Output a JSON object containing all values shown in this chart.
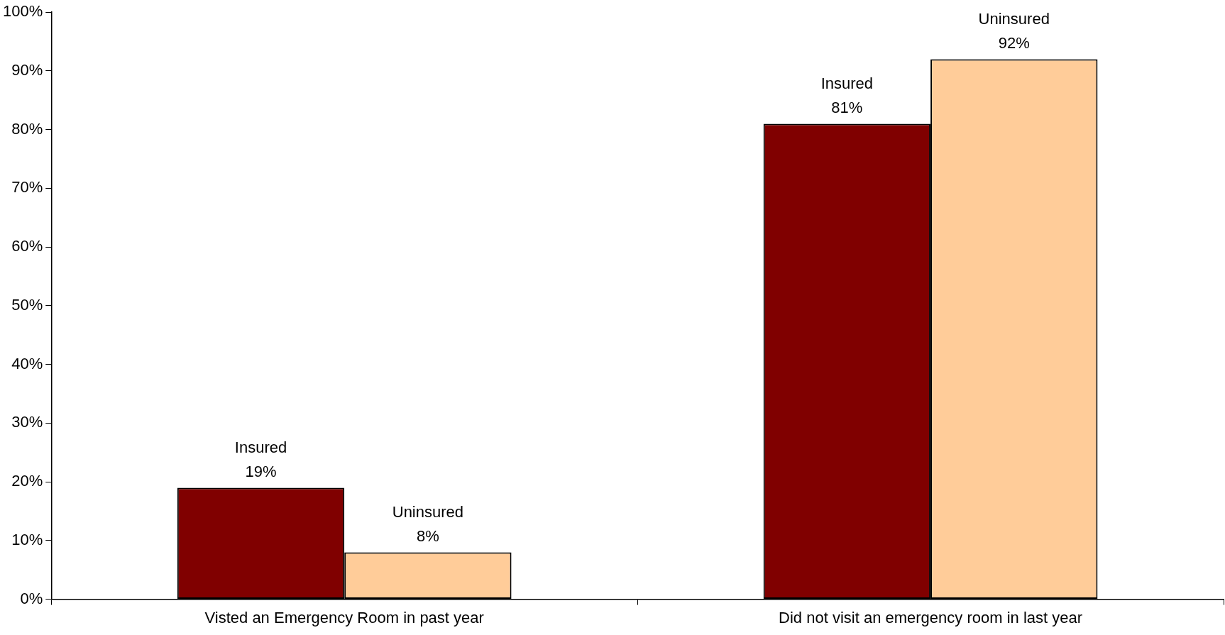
{
  "chart_data": {
    "type": "bar",
    "categories": [
      "Visted an Emergency Room in past year",
      "Did not visit an emergency room in last year"
    ],
    "series": [
      {
        "name": "Insured",
        "color": "#800000",
        "values": [
          19,
          81
        ],
        "value_labels": [
          "19%",
          "81%"
        ]
      },
      {
        "name": "Uninsured",
        "color": "#ffcc99",
        "values": [
          8,
          92
        ],
        "value_labels": [
          "8%",
          "92%"
        ]
      }
    ],
    "ylim": [
      0,
      100
    ],
    "yticks": [
      {
        "value": 0,
        "label": "0%"
      },
      {
        "value": 10,
        "label": "10%"
      },
      {
        "value": 20,
        "label": "20%"
      },
      {
        "value": 30,
        "label": "30%"
      },
      {
        "value": 40,
        "label": "40%"
      },
      {
        "value": 50,
        "label": "50%"
      },
      {
        "value": 60,
        "label": "60%"
      },
      {
        "value": 70,
        "label": "70%"
      },
      {
        "value": 80,
        "label": "80%"
      },
      {
        "value": 90,
        "label": "90%"
      },
      {
        "value": 100,
        "label": "100%"
      }
    ],
    "legend": false
  }
}
